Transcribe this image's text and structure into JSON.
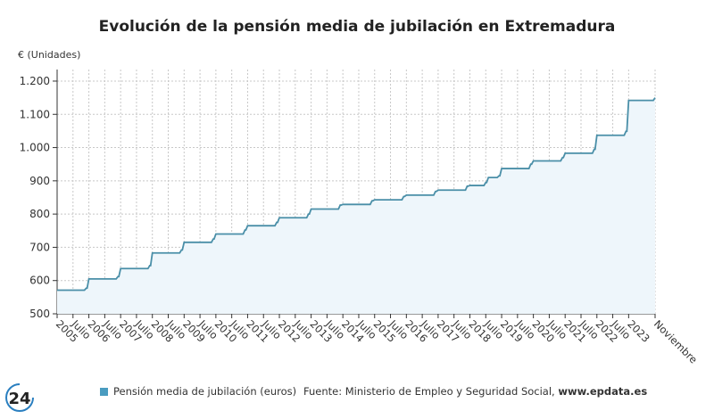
{
  "chart_data": {
    "type": "area",
    "title": "Evolución de la pensión media de jubilación en Extremadura",
    "ylabel": "€ (Unidades)",
    "ylim": [
      480,
      1240
    ],
    "yticks": [
      500,
      600,
      700,
      800,
      900,
      1000,
      1100,
      1200
    ],
    "ytick_labels": [
      "500",
      "600",
      "700",
      "800",
      "900",
      "1.000",
      "1.100",
      "1.200"
    ],
    "xtick_labels": [
      "2005",
      "Julio",
      "2006",
      "Julio",
      "2007",
      "Julio",
      "2008",
      "Julio",
      "2009",
      "Julio",
      "2010",
      "Julio",
      "2011",
      "Julio",
      "2012",
      "Julio",
      "2013",
      "Julio",
      "2014",
      "Julio",
      "2015",
      "Julio",
      "2016",
      "Julio",
      "2017",
      "Julio",
      "2018",
      "Julio",
      "2019",
      "Julio",
      "2020",
      "Julio",
      "2021",
      "Julio",
      "2022",
      "Julio",
      "2023",
      "Noviembre"
    ],
    "grid": true,
    "legend_position": "bottom",
    "colors": {
      "line": "#4a8fa8",
      "fill": "#eef6fb"
    },
    "series": [
      {
        "name": "Pensión media de jubilación (euros)",
        "points": [
          [
            "2005-01",
            571
          ],
          [
            "2005-12",
            577
          ],
          [
            "2006-01",
            605
          ],
          [
            "2006-12",
            612
          ],
          [
            "2007-01",
            636
          ],
          [
            "2007-12",
            645
          ],
          [
            "2008-01",
            683
          ],
          [
            "2008-12",
            692
          ],
          [
            "2009-01",
            715
          ],
          [
            "2009-12",
            725
          ],
          [
            "2010-01",
            740
          ],
          [
            "2010-12",
            752
          ],
          [
            "2011-01",
            765
          ],
          [
            "2011-12",
            775
          ],
          [
            "2012-01",
            789
          ],
          [
            "2012-12",
            800
          ],
          [
            "2013-01",
            815
          ],
          [
            "2013-12",
            827
          ],
          [
            "2014-01",
            829
          ],
          [
            "2014-12",
            840
          ],
          [
            "2015-01",
            843
          ],
          [
            "2015-12",
            853
          ],
          [
            "2016-01",
            857
          ],
          [
            "2016-12",
            868
          ],
          [
            "2017-01",
            872
          ],
          [
            "2017-12",
            884
          ],
          [
            "2018-01",
            886
          ],
          [
            "2018-07",
            895
          ],
          [
            "2018-08",
            910
          ],
          [
            "2018-12",
            915
          ],
          [
            "2019-01",
            937
          ],
          [
            "2019-12",
            950
          ],
          [
            "2020-01",
            960
          ],
          [
            "2020-12",
            970
          ],
          [
            "2021-01",
            983
          ],
          [
            "2021-12",
            995
          ],
          [
            "2022-01",
            1037
          ],
          [
            "2022-12",
            1049
          ],
          [
            "2023-01",
            1142
          ],
          [
            "2023-11",
            1150
          ]
        ]
      }
    ]
  },
  "footer": {
    "legend_label": "Pensión media de jubilación (euros)",
    "source_prefix": "Fuente: Ministerio de Empleo y Seguridad Social, ",
    "source_site": "www.epdata.es",
    "logo_text": "24"
  }
}
